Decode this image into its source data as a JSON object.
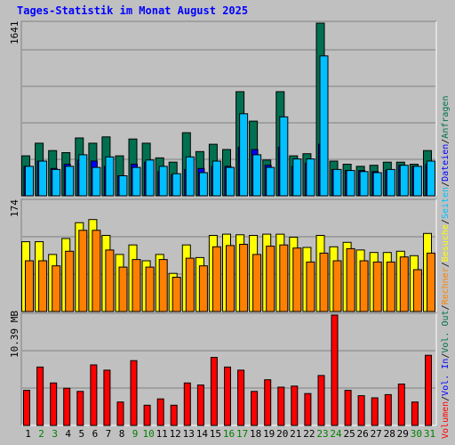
{
  "title": "Tages-Statistik im Monat August 2025",
  "chart_data": [
    {
      "name": "top",
      "type": "bar",
      "ymax_label": "1641",
      "ylim": [
        0,
        1641
      ],
      "categories": [
        "1",
        "2",
        "3",
        "4",
        "5",
        "6",
        "7",
        "8",
        "9",
        "10",
        "11",
        "12",
        "13",
        "14",
        "15",
        "16",
        "17",
        "18",
        "19",
        "20",
        "21",
        "22",
        "23",
        "24",
        "25",
        "26",
        "27",
        "28",
        "29",
        "30",
        "31"
      ],
      "series": [
        {
          "name": "Anfragen",
          "color": "#007050",
          "values": [
            380,
            500,
            430,
            410,
            550,
            500,
            560,
            380,
            540,
            500,
            360,
            320,
            600,
            420,
            490,
            440,
            990,
            710,
            340,
            990,
            380,
            400,
            1641,
            330,
            300,
            280,
            290,
            320,
            320,
            300,
            430
          ]
        },
        {
          "name": "Dateien",
          "color": "#0000ff",
          "values": [
            280,
            330,
            260,
            300,
            340,
            330,
            280,
            190,
            300,
            320,
            230,
            200,
            250,
            260,
            280,
            280,
            460,
            440,
            290,
            460,
            280,
            310,
            490,
            250,
            240,
            240,
            230,
            240,
            290,
            280,
            300
          ]
        },
        {
          "name": "Seiten",
          "color": "#00c0ff",
          "values": [
            280,
            330,
            250,
            280,
            390,
            270,
            370,
            190,
            270,
            340,
            280,
            210,
            370,
            220,
            330,
            270,
            780,
            390,
            270,
            750,
            350,
            350,
            1330,
            250,
            240,
            230,
            220,
            250,
            290,
            280,
            330
          ]
        }
      ]
    },
    {
      "name": "middle",
      "type": "bar",
      "ymax_label": "174",
      "ylim": [
        0,
        174
      ],
      "series": [
        {
          "name": "Besuche",
          "color": "#ffff00",
          "values": [
            110,
            110,
            90,
            115,
            140,
            145,
            120,
            90,
            105,
            80,
            90,
            60,
            105,
            85,
            120,
            122,
            121,
            120,
            122,
            122,
            117,
            101,
            120,
            102,
            109,
            97,
            93,
            93,
            95,
            88,
            123
          ]
        },
        {
          "name": "Rechner",
          "color": "#ff8000",
          "values": [
            80,
            80,
            72,
            95,
            128,
            128,
            97,
            70,
            82,
            70,
            82,
            54,
            84,
            72,
            102,
            104,
            106,
            90,
            103,
            105,
            100,
            78,
            92,
            80,
            99,
            80,
            78,
            78,
            86,
            66,
            92
          ]
        }
      ]
    },
    {
      "name": "bottom",
      "type": "bar",
      "ymax_label": "10.39 MB",
      "ylim": [
        0,
        10.39
      ],
      "series": [
        {
          "name": "Volumen",
          "color": "#ff0000",
          "values": [
            3.3,
            5.5,
            4.0,
            3.5,
            3.2,
            5.7,
            5.2,
            2.2,
            6.1,
            1.9,
            2.5,
            1.9,
            4.0,
            3.8,
            6.4,
            5.5,
            5.2,
            3.2,
            4.3,
            3.6,
            3.7,
            3.0,
            4.7,
            10.39,
            3.3,
            2.8,
            2.6,
            2.9,
            3.9,
            2.2,
            6.6
          ]
        }
      ]
    }
  ],
  "right_legend": [
    {
      "label": "Volumen",
      "color": "#ff0000"
    },
    {
      "label": "/",
      "color": "#000000"
    },
    {
      "label": "Vol. In",
      "color": "#0000ff"
    },
    {
      "label": "/",
      "color": "#000000"
    },
    {
      "label": "Vol. Out",
      "color": "#007050"
    },
    {
      "label": "/",
      "color": "#000000"
    },
    {
      "label": "Rechner",
      "color": "#ff8000"
    },
    {
      "label": "/",
      "color": "#000000"
    },
    {
      "label": "Besuche",
      "color": "#ffff00"
    },
    {
      "label": "/",
      "color": "#000000"
    },
    {
      "label": "Seiten",
      "color": "#00c0ff"
    },
    {
      "label": "/",
      "color": "#000000"
    },
    {
      "label": "Dateien",
      "color": "#0000ff"
    },
    {
      "label": "/",
      "color": "#000000"
    },
    {
      "label": "Anfragen",
      "color": "#007050"
    }
  ],
  "x_labels": [
    {
      "text": "1",
      "color": "#000000"
    },
    {
      "text": "2",
      "color": "#008000"
    },
    {
      "text": "3",
      "color": "#008000"
    },
    {
      "text": "4",
      "color": "#000000"
    },
    {
      "text": "5",
      "color": "#000000"
    },
    {
      "text": "6",
      "color": "#000000"
    },
    {
      "text": "7",
      "color": "#000000"
    },
    {
      "text": "8",
      "color": "#000000"
    },
    {
      "text": "9",
      "color": "#008000"
    },
    {
      "text": "10",
      "color": "#008000"
    },
    {
      "text": "11",
      "color": "#000000"
    },
    {
      "text": "12",
      "color": "#000000"
    },
    {
      "text": "13",
      "color": "#000000"
    },
    {
      "text": "14",
      "color": "#000000"
    },
    {
      "text": "15",
      "color": "#000000"
    },
    {
      "text": "16",
      "color": "#008000"
    },
    {
      "text": "17",
      "color": "#008000"
    },
    {
      "text": "18",
      "color": "#000000"
    },
    {
      "text": "19",
      "color": "#000000"
    },
    {
      "text": "20",
      "color": "#000000"
    },
    {
      "text": "21",
      "color": "#000000"
    },
    {
      "text": "22",
      "color": "#000000"
    },
    {
      "text": "23",
      "color": "#008000"
    },
    {
      "text": "24",
      "color": "#008000"
    },
    {
      "text": "25",
      "color": "#000000"
    },
    {
      "text": "26",
      "color": "#000000"
    },
    {
      "text": "27",
      "color": "#000000"
    },
    {
      "text": "28",
      "color": "#000000"
    },
    {
      "text": "29",
      "color": "#000000"
    },
    {
      "text": "30",
      "color": "#008000"
    },
    {
      "text": "31",
      "color": "#008000"
    }
  ]
}
